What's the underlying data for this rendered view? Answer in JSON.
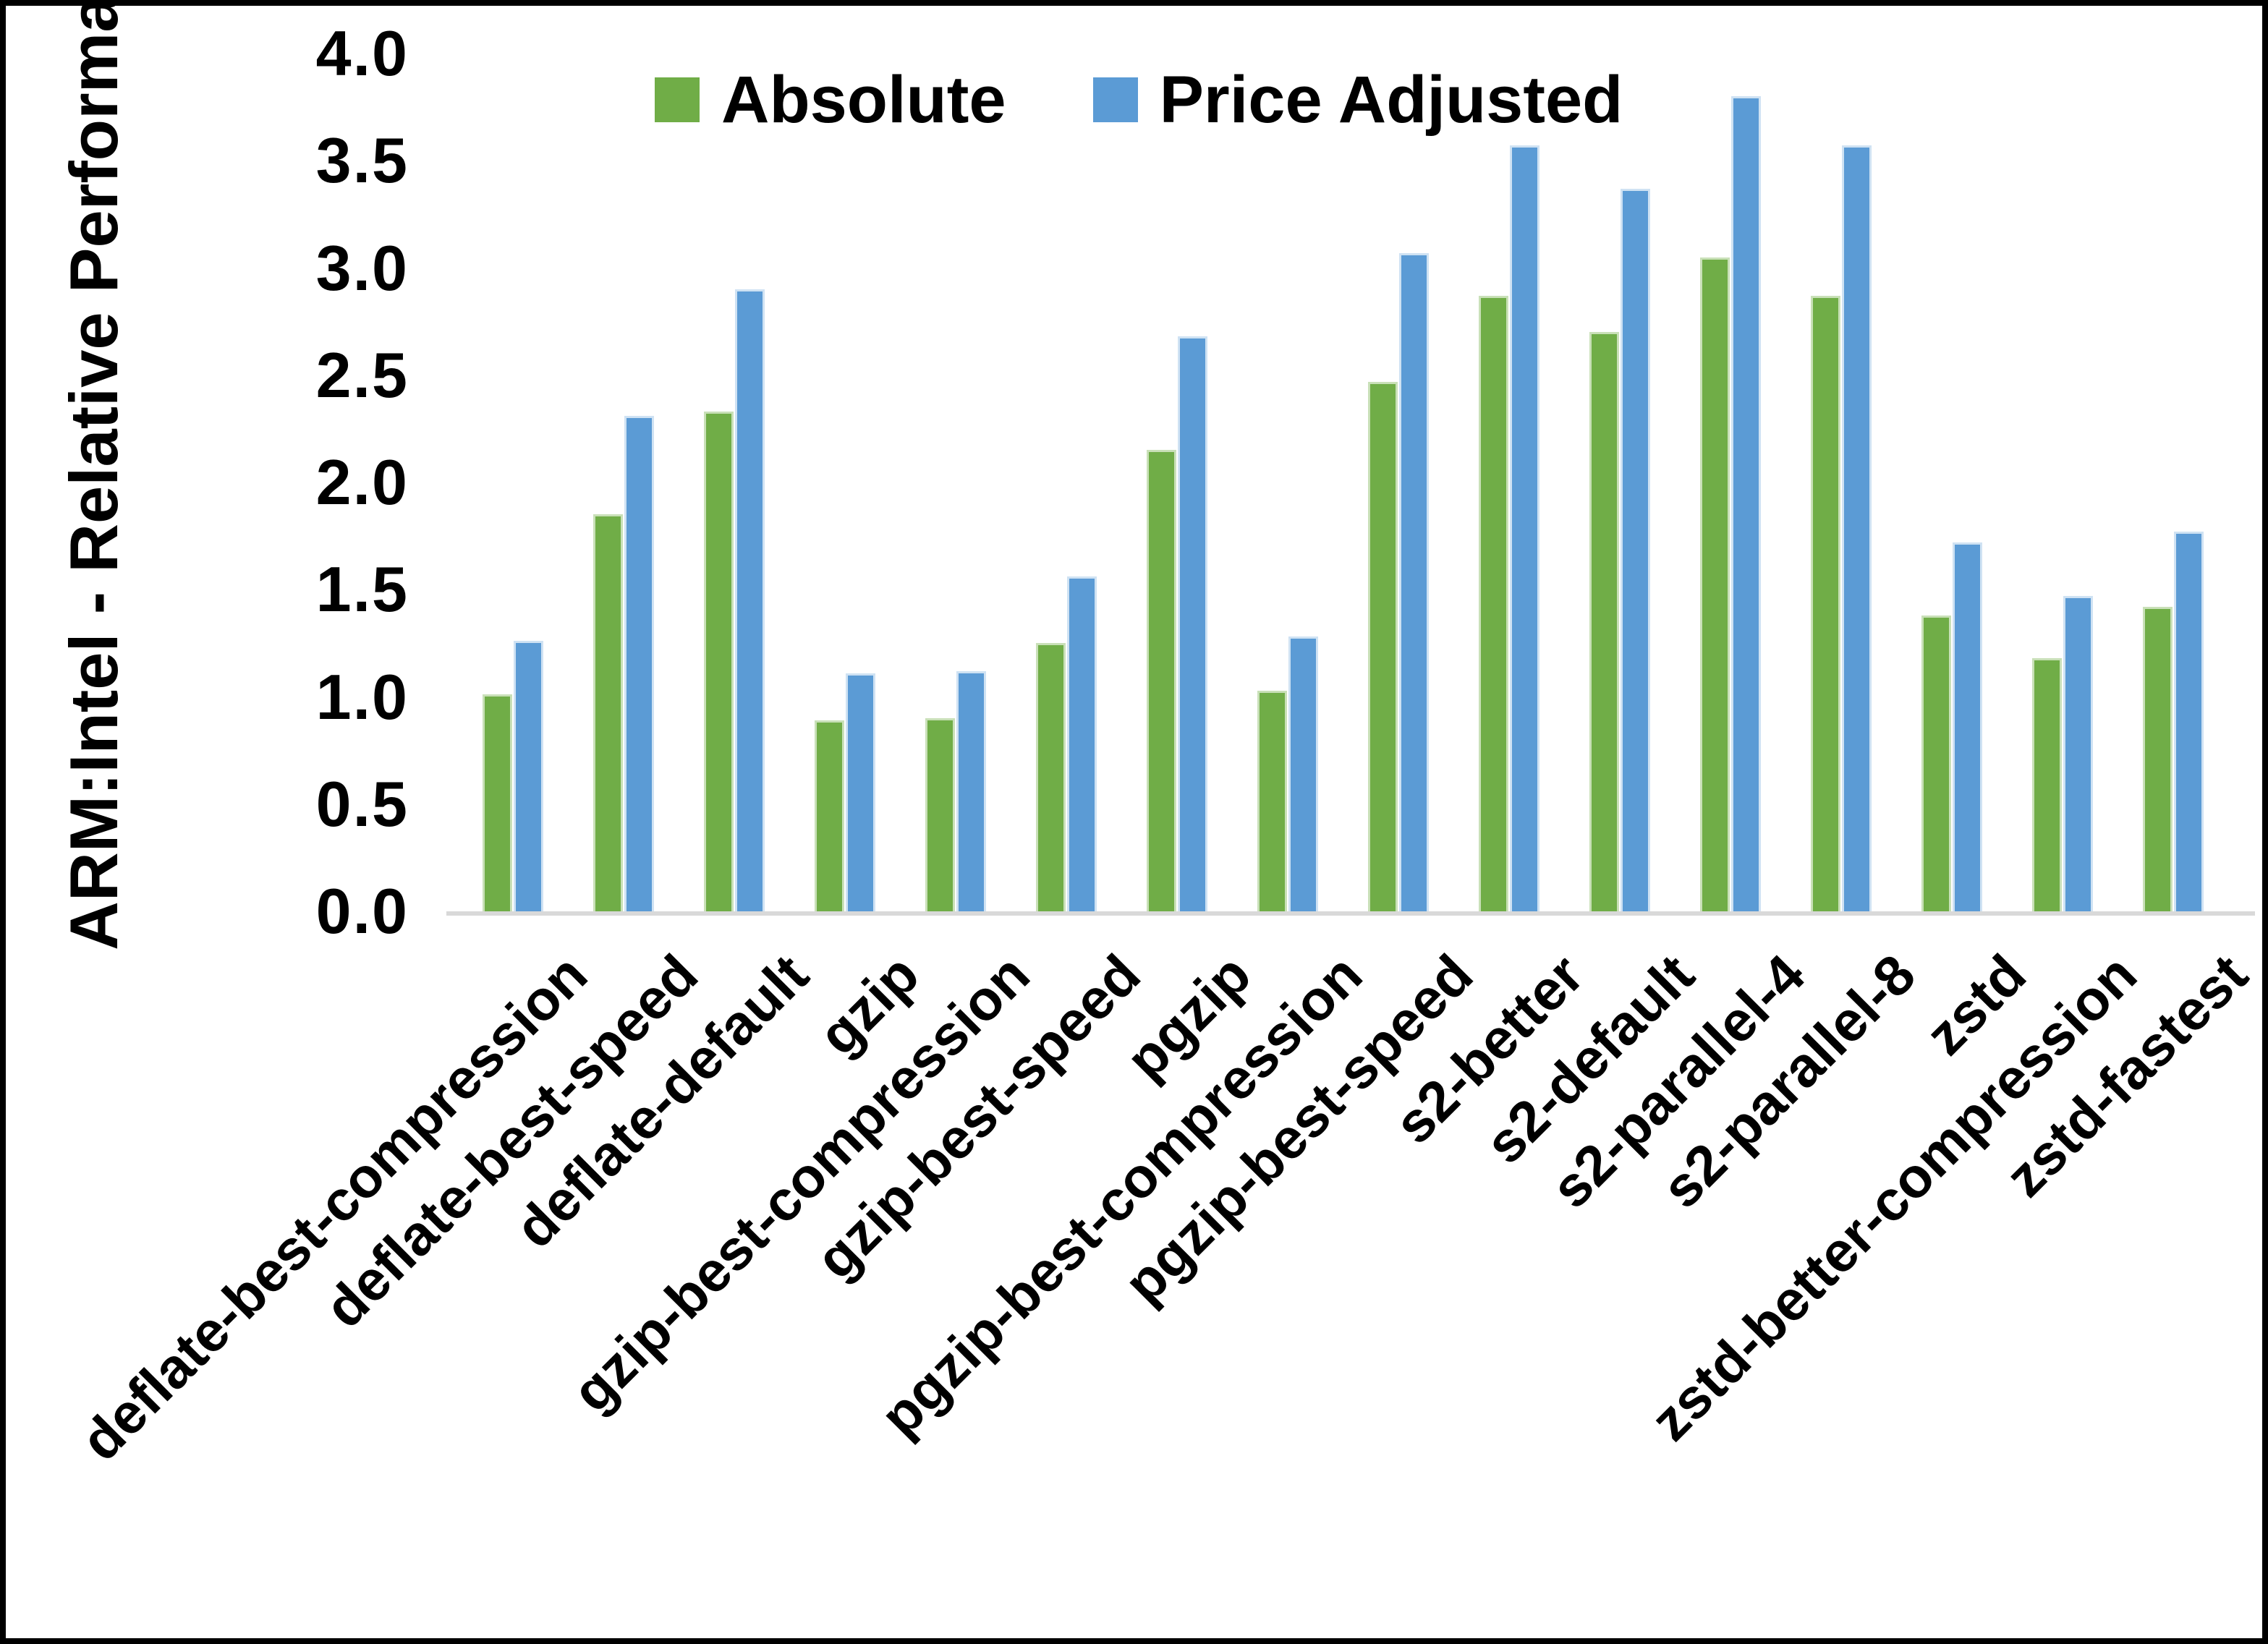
{
  "chart_data": {
    "type": "bar",
    "title": "",
    "ylabel": "ARM:Intel - Relative Performance",
    "xlabel": "",
    "ylim": [
      0.0,
      4.0
    ],
    "ytick_step": 0.5,
    "ytick_labels": [
      "0.0",
      "0.5",
      "1.0",
      "1.5",
      "2.0",
      "2.5",
      "3.0",
      "3.5",
      "4.0"
    ],
    "grid": false,
    "legend_position": "top-center",
    "categories": [
      "deflate-best-compression",
      "deflate-best-speed",
      "deflate-default",
      "gzip",
      "gzip-best-compression",
      "gzip-best-speed",
      "pgzip",
      "pgzip-best-compression",
      "pgzip-best-speed",
      "s2-better",
      "s2-default",
      "s2-parallel-4",
      "s2-parallel-8",
      "zstd",
      "zstd-better-compression",
      "zstd-fastest"
    ],
    "series": [
      {
        "name": "Absolute",
        "color": "#70AD47",
        "values": [
          1.0,
          1.84,
          2.32,
          0.88,
          0.89,
          1.24,
          2.14,
          1.02,
          2.46,
          2.86,
          2.69,
          3.04,
          2.86,
          1.37,
          1.17,
          1.41
        ]
      },
      {
        "name": "Price Adjusted",
        "color": "#5B9BD5",
        "values": [
          1.25,
          2.3,
          2.89,
          1.1,
          1.11,
          1.55,
          2.67,
          1.27,
          3.06,
          3.56,
          3.36,
          3.79,
          3.56,
          1.71,
          1.46,
          1.76
        ]
      }
    ],
    "axis_line_color": "#d9d9d9",
    "text_color": "#000000"
  }
}
